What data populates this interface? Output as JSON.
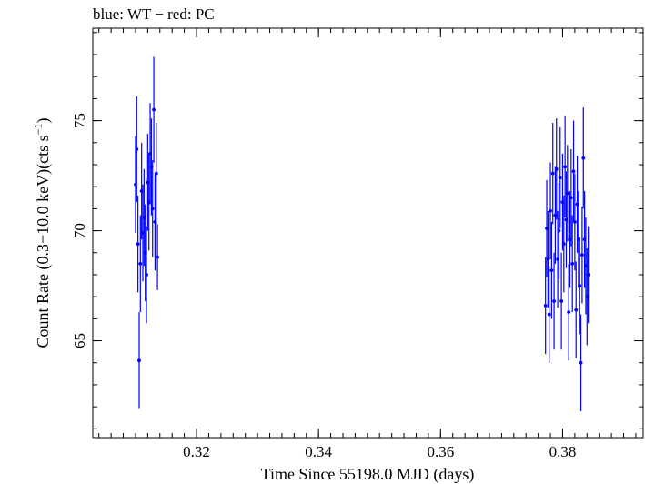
{
  "header": {
    "legend_text": "blue: WT − red: PC"
  },
  "chart_data": {
    "type": "scatter",
    "title": "blue: WT − red: PC",
    "xlabel": "Time Since 55198.0 MJD (days)",
    "ylabel_main": "Count Rate (0.3−10.0 keV)(cts s",
    "ylabel_sup": "−1",
    "ylabel_close": ")",
    "xlim": [
      0.303,
      0.3932
    ],
    "ylim": [
      60.6,
      79.2
    ],
    "x_ticks": [
      0.32,
      0.34,
      0.36,
      0.38
    ],
    "x_tick_labels": [
      "0.32",
      "0.34",
      "0.36",
      "0.38"
    ],
    "x_minor_step": 0.002,
    "y_ticks": [
      65,
      70,
      75
    ],
    "y_tick_labels": [
      "65",
      "70",
      "75"
    ],
    "y_minor_step": 1,
    "grid": false,
    "legend": "top-left",
    "series": [
      {
        "name": "WT",
        "color": "#0000ff",
        "points": [
          {
            "x": 0.31,
            "y": 72.1,
            "err": 2.2
          },
          {
            "x": 0.3102,
            "y": 73.7,
            "err": 2.4
          },
          {
            "x": 0.3104,
            "y": 69.4,
            "err": 2.2
          },
          {
            "x": 0.3106,
            "y": 64.1,
            "err": 2.2
          },
          {
            "x": 0.3108,
            "y": 68.5,
            "err": 2.2
          },
          {
            "x": 0.311,
            "y": 71.8,
            "err": 2.2
          },
          {
            "x": 0.3112,
            "y": 69.9,
            "err": 2.2
          },
          {
            "x": 0.3114,
            "y": 70.6,
            "err": 2.2
          },
          {
            "x": 0.3116,
            "y": 69.0,
            "err": 2.2
          },
          {
            "x": 0.3118,
            "y": 68.0,
            "err": 2.2
          },
          {
            "x": 0.312,
            "y": 72.2,
            "err": 2.2
          },
          {
            "x": 0.3122,
            "y": 71.3,
            "err": 2.2
          },
          {
            "x": 0.3124,
            "y": 73.5,
            "err": 2.3
          },
          {
            "x": 0.3126,
            "y": 72.9,
            "err": 2.2
          },
          {
            "x": 0.3128,
            "y": 71.0,
            "err": 2.2
          },
          {
            "x": 0.313,
            "y": 75.5,
            "err": 2.4
          },
          {
            "x": 0.3132,
            "y": 70.4,
            "err": 2.2
          },
          {
            "x": 0.3134,
            "y": 72.6,
            "err": 2.3
          },
          {
            "x": 0.3136,
            "y": 68.8,
            "err": 1.5
          }
        ]
      },
      {
        "name": "PC",
        "color": "#ff0000",
        "points": [
          {
            "x": 0.3772,
            "y": 66.6,
            "err": 2.2
          },
          {
            "x": 0.3774,
            "y": 70.1,
            "err": 2.2
          },
          {
            "x": 0.3776,
            "y": 68.7,
            "err": 2.2
          },
          {
            "x": 0.3778,
            "y": 66.2,
            "err": 2.2
          },
          {
            "x": 0.378,
            "y": 70.9,
            "err": 2.2
          },
          {
            "x": 0.3782,
            "y": 68.2,
            "err": 2.2
          },
          {
            "x": 0.3784,
            "y": 72.6,
            "err": 2.3
          },
          {
            "x": 0.3786,
            "y": 66.8,
            "err": 2.2
          },
          {
            "x": 0.3788,
            "y": 70.7,
            "err": 2.2
          },
          {
            "x": 0.379,
            "y": 72.8,
            "err": 2.3
          },
          {
            "x": 0.3792,
            "y": 68.7,
            "err": 2.2
          },
          {
            "x": 0.3794,
            "y": 70.0,
            "err": 2.2
          },
          {
            "x": 0.3796,
            "y": 72.4,
            "err": 2.3
          },
          {
            "x": 0.3798,
            "y": 66.8,
            "err": 2.2
          },
          {
            "x": 0.38,
            "y": 71.3,
            "err": 2.2
          },
          {
            "x": 0.3802,
            "y": 69.4,
            "err": 2.2
          },
          {
            "x": 0.3804,
            "y": 72.9,
            "err": 2.3
          },
          {
            "x": 0.3806,
            "y": 70.5,
            "err": 2.2
          },
          {
            "x": 0.3808,
            "y": 71.7,
            "err": 2.2
          },
          {
            "x": 0.381,
            "y": 66.3,
            "err": 2.2
          },
          {
            "x": 0.3812,
            "y": 69.6,
            "err": 2.2
          },
          {
            "x": 0.3814,
            "y": 71.5,
            "err": 2.2
          },
          {
            "x": 0.3816,
            "y": 68.5,
            "err": 2.2
          },
          {
            "x": 0.3818,
            "y": 72.7,
            "err": 2.3
          },
          {
            "x": 0.382,
            "y": 70.4,
            "err": 2.2
          },
          {
            "x": 0.3822,
            "y": 66.4,
            "err": 2.2
          },
          {
            "x": 0.3824,
            "y": 71.2,
            "err": 2.2
          },
          {
            "x": 0.3826,
            "y": 69.6,
            "err": 2.2
          },
          {
            "x": 0.3828,
            "y": 67.5,
            "err": 2.2
          },
          {
            "x": 0.383,
            "y": 64.0,
            "err": 2.2
          },
          {
            "x": 0.3832,
            "y": 68.9,
            "err": 2.2
          },
          {
            "x": 0.3834,
            "y": 73.3,
            "err": 2.3
          },
          {
            "x": 0.3836,
            "y": 69.6,
            "err": 2.2
          },
          {
            "x": 0.3838,
            "y": 68.4,
            "err": 2.2
          },
          {
            "x": 0.384,
            "y": 67.0,
            "err": 2.2
          },
          {
            "x": 0.3842,
            "y": 68.0,
            "err": 2.2
          }
        ]
      }
    ]
  }
}
